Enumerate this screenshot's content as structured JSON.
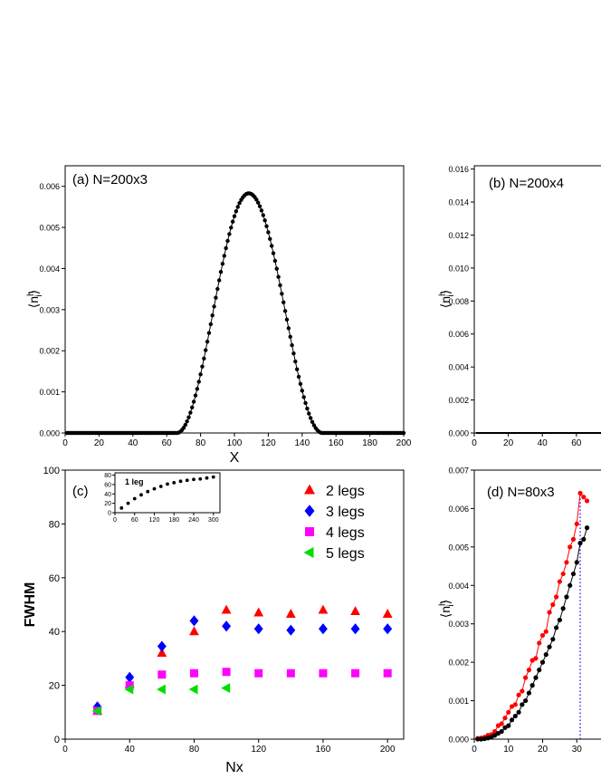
{
  "chart_data": [
    {
      "panel": "a",
      "type": "scatter",
      "title": "(a) N=200x3",
      "xlabel": "X",
      "ylabel": "⟨n_i^h⟩",
      "xlim": [
        0,
        200
      ],
      "ylim": [
        0,
        0.0065
      ],
      "xticks": [
        0,
        20,
        40,
        60,
        80,
        100,
        120,
        140,
        160,
        180,
        200
      ],
      "yticks": [
        0.0,
        0.001,
        0.002,
        0.003,
        0.004,
        0.005,
        0.006
      ],
      "ytick_labels": [
        "0.000",
        "0.001",
        "0.002",
        "0.003",
        "0.004",
        "0.005",
        "0.006"
      ],
      "series": [
        {
          "color": "#000000",
          "marker": "circle",
          "line": true,
          "profile": {
            "x_start": 1,
            "x_end": 200,
            "step": 1,
            "support": [
              66,
              152
            ],
            "peak_x": 108.5,
            "peak_y": 0.00583
          }
        }
      ]
    },
    {
      "panel": "b",
      "type": "scatter",
      "title": "(b) N=200x4",
      "xlabel": "",
      "ylabel": "⟨n_i^h⟩",
      "xlim": [
        0,
        200
      ],
      "ylim": [
        0,
        0.0162
      ],
      "xticks": [
        0,
        20,
        40,
        60
      ],
      "yticks": [
        0.0,
        0.002,
        0.004,
        0.006,
        0.008,
        0.01,
        0.012,
        0.014,
        0.016
      ],
      "ytick_labels": [
        "0.000",
        "0.002",
        "0.004",
        "0.006",
        "0.008",
        "0.010",
        "0.012",
        "0.014",
        "0.016"
      ],
      "series": [
        {
          "color": "#000000",
          "marker": "circle",
          "line": true,
          "x": [
            1,
            80
          ],
          "y": [
            0,
            0
          ]
        }
      ]
    },
    {
      "panel": "c",
      "type": "scatter",
      "title": "(c)",
      "xlabel": "Nx",
      "ylabel": "FWHM",
      "xlim": [
        0,
        210
      ],
      "ylim": [
        0,
        100
      ],
      "xticks": [
        0,
        40,
        80,
        120,
        160,
        200
      ],
      "yticks": [
        0,
        20,
        40,
        60,
        80,
        100
      ],
      "legend_position": "top-right",
      "series": [
        {
          "name": "2 legs",
          "color": "#ff0000",
          "marker": "triangle-up",
          "x": [
            20,
            40,
            60,
            80,
            100,
            120,
            140,
            160,
            180,
            200
          ],
          "y": [
            10.5,
            20.5,
            32,
            40,
            48,
            47,
            46.5,
            48,
            47.5,
            46.5
          ]
        },
        {
          "name": "3 legs",
          "color": "#0000ff",
          "marker": "diamond",
          "x": [
            20,
            40,
            60,
            80,
            100,
            120,
            140,
            160,
            180,
            200
          ],
          "y": [
            12,
            23,
            34.5,
            44,
            42,
            41,
            40.5,
            41,
            41,
            41
          ]
        },
        {
          "name": "4 legs",
          "color": "#ff00ff",
          "marker": "square",
          "x": [
            20,
            40,
            60,
            80,
            100,
            120,
            140,
            160,
            180,
            200
          ],
          "y": [
            10.5,
            20,
            24,
            24.5,
            25,
            24.5,
            24.5,
            24.5,
            24.5,
            24.5
          ]
        },
        {
          "name": "5 legs",
          "color": "#00dd00",
          "marker": "triangle-left",
          "x": [
            20,
            40,
            60,
            80,
            100
          ],
          "y": [
            10.5,
            18.5,
            18.5,
            18.5,
            19
          ]
        }
      ],
      "inset": {
        "label": "1 leg",
        "type": "scatter",
        "xlim": [
          0,
          320
        ],
        "ylim": [
          0,
          85
        ],
        "xticks": [
          0,
          60,
          120,
          180,
          240,
          300
        ],
        "yticks": [
          0,
          20,
          40,
          60,
          80
        ],
        "series": [
          {
            "color": "#000000",
            "marker": "circle",
            "x": [
              20,
              40,
              60,
              80,
              100,
              120,
              140,
              160,
              180,
              200,
              220,
              240,
              260,
              280,
              300
            ],
            "y": [
              10,
              20,
              30,
              38,
              45,
              51,
              56,
              61,
              64,
              67,
              69,
              71,
              72,
              74,
              76
            ]
          }
        ]
      }
    },
    {
      "panel": "d",
      "type": "line",
      "title": "(d) N=80x3",
      "xlabel": "",
      "ylabel": "⟨n_i^h⟩",
      "xlim": [
        0,
        80
      ],
      "ylim": [
        0,
        0.007
      ],
      "xticks": [
        0,
        10,
        20,
        30
      ],
      "yticks": [
        0.0,
        0.001,
        0.002,
        0.003,
        0.004,
        0.005,
        0.006,
        0.007
      ],
      "ytick_labels": [
        "0.000",
        "0.001",
        "0.002",
        "0.003",
        "0.004",
        "0.005",
        "0.006",
        "0.007"
      ],
      "vline_x": 31,
      "series": [
        {
          "color": "#ff0000",
          "marker": "circle",
          "x": [
            1,
            2,
            3,
            4,
            5,
            6,
            7,
            8,
            9,
            10,
            11,
            12,
            13,
            14,
            15,
            16,
            17,
            18,
            19,
            20,
            21,
            22,
            23,
            24,
            25,
            26,
            27,
            28,
            29,
            30,
            31,
            32,
            33
          ],
          "y": [
            2e-05,
            3e-05,
            5e-05,
            0.0001,
            0.00012,
            0.0002,
            0.00035,
            0.0004,
            0.00055,
            0.0007,
            0.00085,
            0.0009,
            0.00115,
            0.00125,
            0.0016,
            0.0018,
            0.00205,
            0.0021,
            0.0025,
            0.0027,
            0.0028,
            0.0033,
            0.0035,
            0.0037,
            0.0041,
            0.0043,
            0.0046,
            0.005,
            0.0052,
            0.0056,
            0.0064,
            0.0063,
            0.0062
          ]
        },
        {
          "color": "#000000",
          "marker": "circle",
          "x": [
            1,
            2,
            3,
            4,
            5,
            6,
            7,
            8,
            9,
            10,
            11,
            12,
            13,
            14,
            15,
            16,
            17,
            18,
            19,
            20,
            21,
            22,
            23,
            24,
            25,
            26,
            27,
            28,
            29,
            30,
            31,
            32,
            33
          ],
          "y": [
            0.0,
            0.0,
            1e-05,
            3e-05,
            5e-05,
            0.0001,
            0.00015,
            0.0002,
            0.0003,
            0.00035,
            0.0005,
            0.0006,
            0.0007,
            0.0009,
            0.001,
            0.0012,
            0.0014,
            0.0016,
            0.0018,
            0.002,
            0.0022,
            0.0024,
            0.0026,
            0.0029,
            0.0031,
            0.0034,
            0.0037,
            0.004,
            0.0043,
            0.0046,
            0.0051,
            0.0052,
            0.0055
          ]
        }
      ]
    }
  ]
}
